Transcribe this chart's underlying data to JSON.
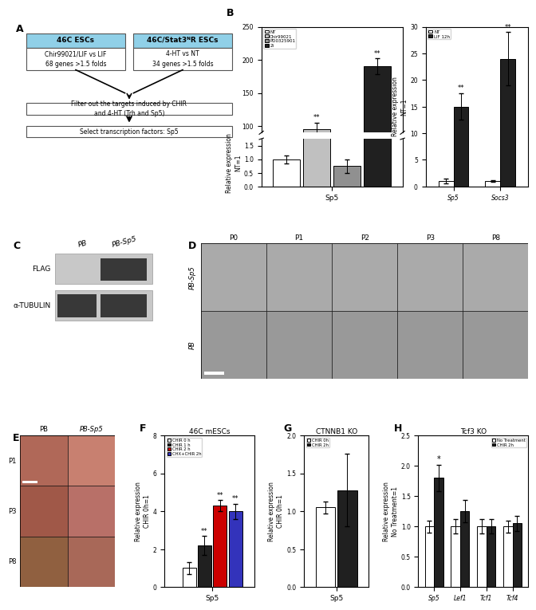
{
  "panel_A": {
    "box1_title": "46C ESCs",
    "box1_sub": "Chir99021/LIF vs LIF\n68 genes >1.5 folds",
    "box2_title": "46C/Stat3ᴺR ESCs",
    "box2_sub": "4-HT vs NT\n34 genes >1.5 folds",
    "filter_text": "Filter out the targets induced by CHIR\nand 4-HT (Trh and Sp5)",
    "select_text": "Select transcription factors: Sp5"
  },
  "panel_B_left": {
    "groups": [
      "NT",
      "Chir99021",
      "PD0325901",
      "2i"
    ],
    "values": [
      1.0,
      95.0,
      0.75,
      190.0
    ],
    "errors": [
      0.15,
      10.0,
      0.25,
      12.0
    ],
    "colors": [
      "white",
      "#c0c0c0",
      "#909090",
      "#202020"
    ],
    "ylabel": "Relative expression\nNT=1",
    "xlabel": "Sp5",
    "ylim_low": [
      0.0,
      1.75
    ],
    "ylim_high": [
      90.0,
      250.0
    ],
    "yticks_low": [
      0.0,
      0.5,
      1.0,
      1.5
    ],
    "yticks_high": [
      100,
      150,
      200,
      250
    ]
  },
  "panel_B_right": {
    "categories": [
      "Sp5",
      "Socs3"
    ],
    "groups": [
      "NT",
      "LIF 12h"
    ],
    "values_NT": [
      1.0,
      1.0
    ],
    "values_LIF": [
      15.0,
      24.0
    ],
    "errors_NT": [
      0.4,
      0.2
    ],
    "errors_LIF": [
      2.5,
      5.0
    ],
    "colors": [
      "white",
      "#202020"
    ],
    "ylabel": "Relative expression\nNT=1",
    "ylim": [
      0,
      30
    ],
    "yticks": [
      0,
      5,
      10,
      15,
      20,
      25,
      30
    ]
  },
  "panel_C": {
    "lanes": [
      "PB",
      "PB-Sp5"
    ],
    "rows": [
      "FLAG",
      "α-TUBULIN"
    ],
    "flag_band": [
      false,
      true
    ],
    "tubulin_band": [
      true,
      true
    ],
    "gel_bg": "#c8c8c8",
    "band_dark": "#383838",
    "band_light": "#585858"
  },
  "panel_D": {
    "cols": [
      "P0",
      "P1",
      "P2",
      "P3",
      "P8"
    ],
    "rows": [
      "PB-Sp5",
      "PB"
    ],
    "cell_color": "#a0a0a0"
  },
  "panel_E": {
    "cols": [
      "PB",
      "PB-Sp5"
    ],
    "rows": [
      "P1",
      "P3",
      "P8"
    ],
    "cell_color_left": "#b07060",
    "cell_color_right": "#c08878"
  },
  "panel_F": {
    "title": "46C mESCs",
    "groups": [
      "CHIR 0 h",
      "CHIR 1 h",
      "CHIR 2 h",
      "CHX+CHIR 2h"
    ],
    "values": [
      1.0,
      2.2,
      4.3,
      4.0
    ],
    "errors": [
      0.3,
      0.5,
      0.3,
      0.4
    ],
    "colors": [
      "white",
      "#202020",
      "#cc0000",
      "#3333bb"
    ],
    "ylabel": "Relative expression\nCHIR 0h=1",
    "xlabel": "Sp5",
    "ylim": [
      0,
      8
    ],
    "yticks": [
      0,
      2,
      4,
      6,
      8
    ],
    "sigs": [
      null,
      "**",
      "**",
      "**"
    ]
  },
  "panel_G": {
    "title": "CTNNB1 KO",
    "groups": [
      "CHIR 0h",
      "CHIR 2h"
    ],
    "values": [
      1.05,
      1.28
    ],
    "errors": [
      0.08,
      0.48
    ],
    "colors": [
      "white",
      "#202020"
    ],
    "ylabel": "Relative expression\nCHIR 0h=1",
    "xlabel": "Sp5",
    "ylim": [
      0,
      2.0
    ],
    "yticks": [
      0.0,
      0.5,
      1.0,
      1.5,
      2.0
    ]
  },
  "panel_H": {
    "title": "Tcf3 KO",
    "categories": [
      "Sp5",
      "Lef1",
      "Tcf1",
      "Tcf4"
    ],
    "groups": [
      "No Treatment",
      "CHIR 2h"
    ],
    "values_NT": [
      1.0,
      1.0,
      1.0,
      1.0
    ],
    "values_CHIR": [
      1.8,
      1.25,
      1.0,
      1.05
    ],
    "errors_NT": [
      0.1,
      0.12,
      0.12,
      0.1
    ],
    "errors_CHIR": [
      0.22,
      0.18,
      0.12,
      0.12
    ],
    "colors": [
      "white",
      "#202020"
    ],
    "ylabel": "Relative expression\nNo Treatment=1",
    "ylim": [
      0,
      2.5
    ],
    "yticks": [
      0.0,
      0.5,
      1.0,
      1.5,
      2.0,
      2.5
    ],
    "sig_idx": 0,
    "sig_label": "*"
  },
  "fs": 6.5,
  "fs_small": 5.5,
  "fs_label": 9
}
